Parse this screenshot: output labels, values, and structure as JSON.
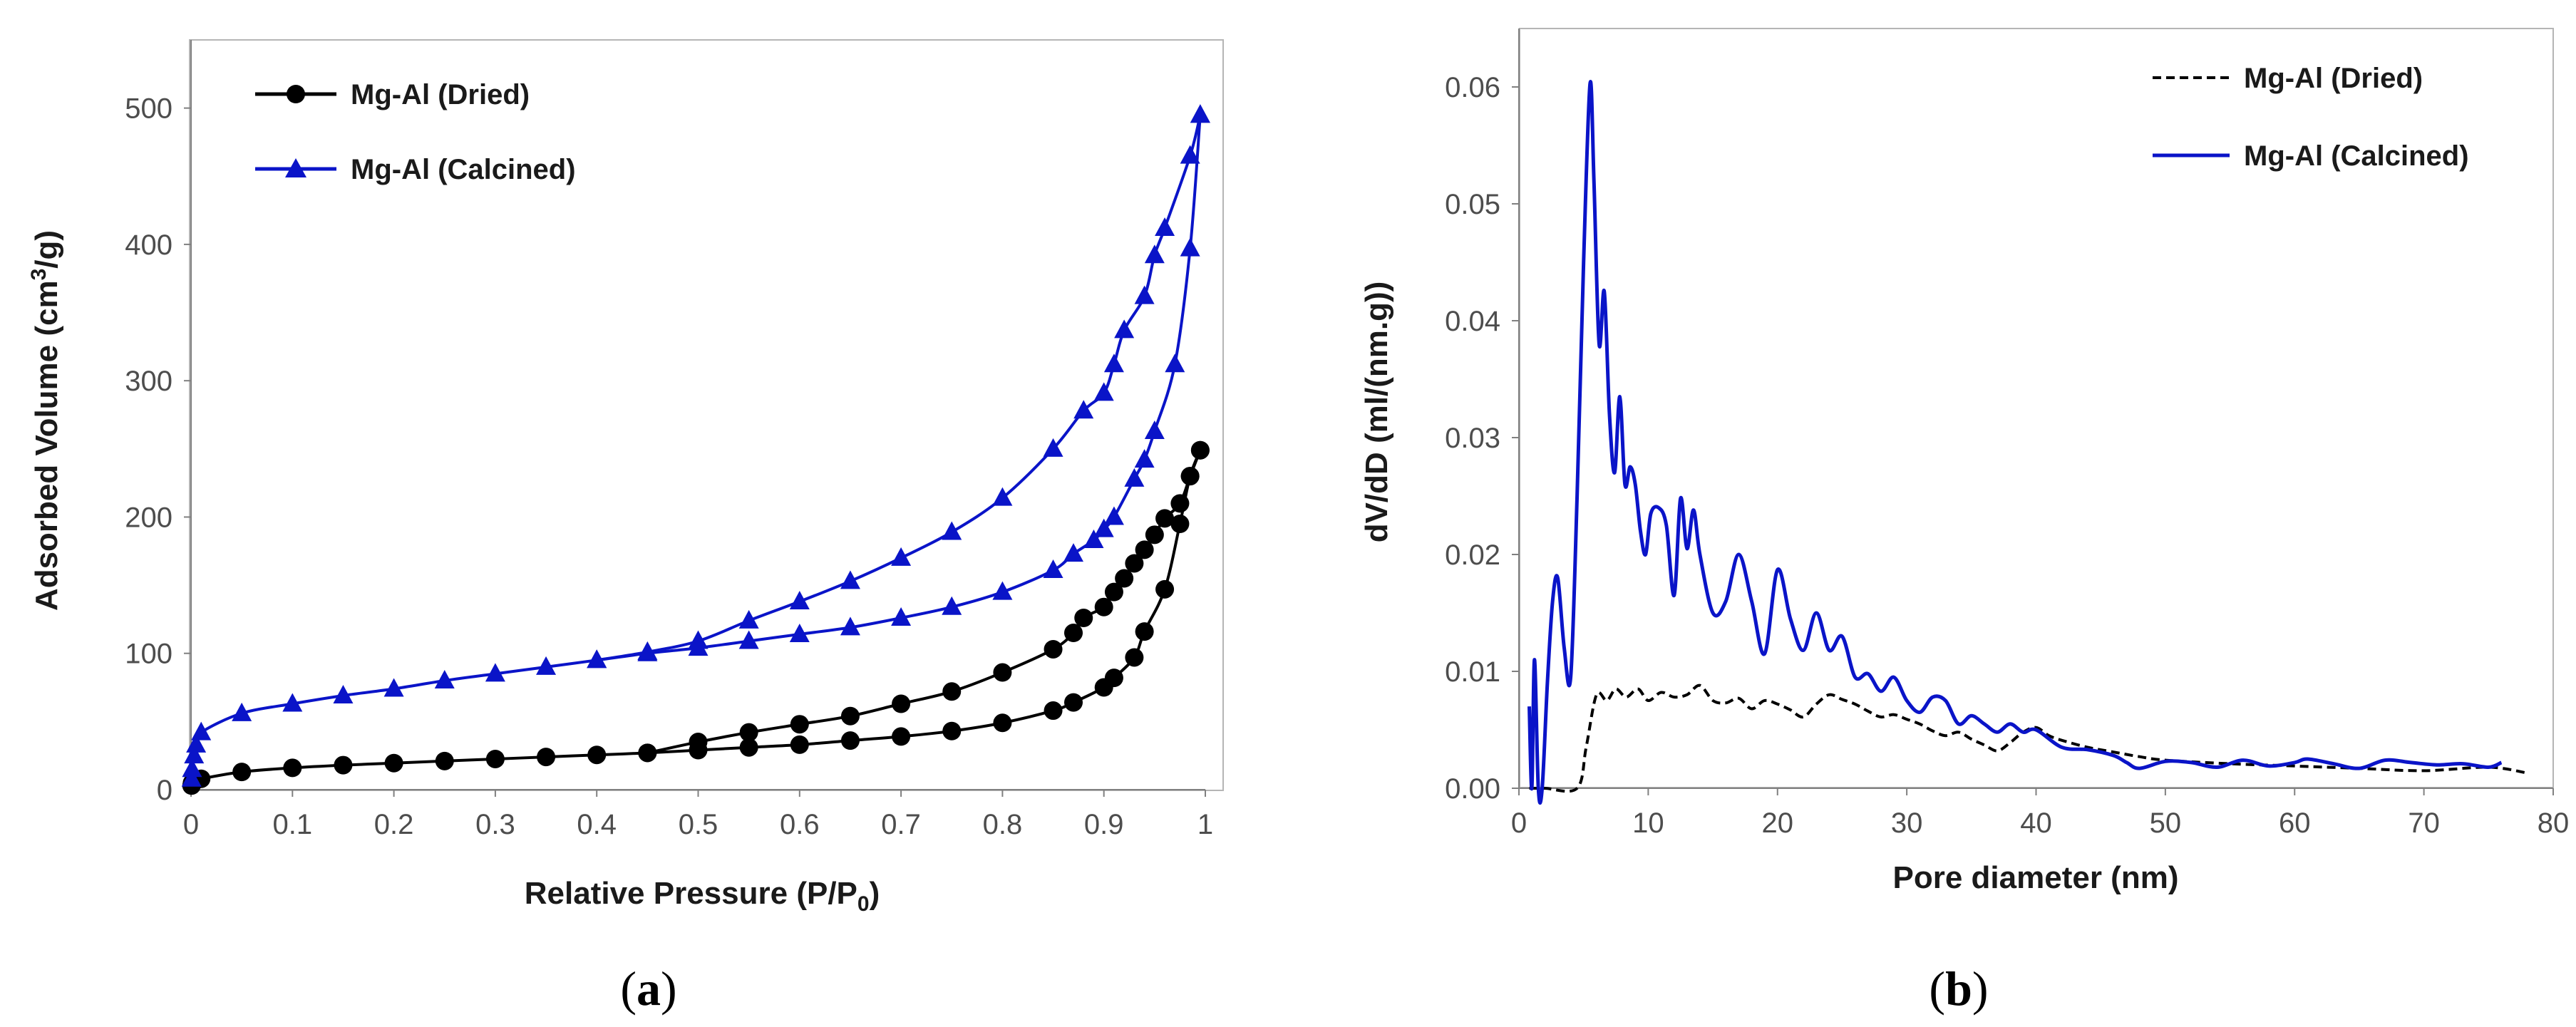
{
  "chart_data": [
    {
      "type": "line",
      "panel": "a",
      "caption": {
        "open": "(",
        "letter": "a",
        "close": ")"
      },
      "xlabel": "Relative Pressure (P/P",
      "xlabel_sub": "0",
      "xlabel_tail": ")",
      "ylabel": "Adsorbed Volume (cm",
      "ylabel_sup": "3",
      "ylabel_tail": "/g)",
      "xlim": [
        0,
        1
      ],
      "ylim": [
        0,
        550
      ],
      "xticks": [
        0,
        0.1,
        0.2,
        0.3,
        0.4,
        0.5,
        0.6,
        0.7,
        0.8,
        0.9,
        1
      ],
      "xtick_labels": [
        "0",
        "0.1",
        "0.2",
        "0.3",
        "0.4",
        "0.5",
        "0.6",
        "0.7",
        "0.8",
        "0.9",
        "1"
      ],
      "yticks": [
        0,
        100,
        200,
        300,
        400,
        500
      ],
      "ytick_labels": [
        "0",
        "100",
        "200",
        "300",
        "400",
        "500"
      ],
      "legend_position": "top-left",
      "series": [
        {
          "name": "Mg-Al (Dried)",
          "color": "#000000",
          "marker": "circle",
          "style": "solid",
          "adsorption": {
            "x": [
              0.0005,
              0.001,
              0.003,
              0.005,
              0.01,
              0.05,
              0.1,
              0.15,
              0.2,
              0.25,
              0.3,
              0.35,
              0.4,
              0.45,
              0.5,
              0.55,
              0.6,
              0.65,
              0.7,
              0.75,
              0.8,
              0.85,
              0.87,
              0.9,
              0.91,
              0.93,
              0.94,
              0.96,
              0.975,
              0.985,
              0.995
            ],
            "y": [
              3,
              5,
              6,
              7,
              8,
              13,
              16,
              18,
              19.5,
              21,
              22.5,
              24,
              25.5,
              27,
              29,
              31,
              33,
              36,
              39,
              43,
              49,
              58,
              64,
              75,
              82,
              97,
              116,
              147,
              195,
              230,
              249
            ]
          },
          "desorption": {
            "x": [
              0.995,
              0.985,
              0.975,
              0.96,
              0.95,
              0.94,
              0.93,
              0.92,
              0.91,
              0.9,
              0.88,
              0.87,
              0.85,
              0.8,
              0.75,
              0.7,
              0.65,
              0.6,
              0.55,
              0.5,
              0.45
            ],
            "y": [
              249,
              230,
              210,
              199,
              187,
              176,
              166,
              155,
              145,
              134,
              126,
              115,
              103,
              86,
              72,
              63,
              54,
              48,
              42,
              35,
              27
            ]
          }
        },
        {
          "name": "Mg-Al (Calcined)",
          "color": "#0a14c8",
          "marker": "triangle",
          "style": "solid",
          "adsorption": {
            "x": [
              0.0005,
              0.001,
              0.003,
              0.005,
              0.01,
              0.05,
              0.1,
              0.15,
              0.2,
              0.25,
              0.3,
              0.35,
              0.4,
              0.45,
              0.5,
              0.55,
              0.6,
              0.65,
              0.7,
              0.75,
              0.8,
              0.85,
              0.87,
              0.89,
              0.9,
              0.91,
              0.93,
              0.94,
              0.95,
              0.97,
              0.985,
              0.995
            ],
            "y": [
              8,
              15,
              25,
              33,
              42,
              56,
              63,
              69,
              74,
              80,
              85,
              90,
              95,
              100,
              104,
              109,
              114,
              119,
              126,
              134,
              145,
              161,
              173,
              183,
              191,
              200,
              228,
              242,
              263,
              312,
              397,
              495
            ]
          },
          "desorption": {
            "x": [
              0.995,
              0.985,
              0.96,
              0.95,
              0.94,
              0.92,
              0.91,
              0.9,
              0.88,
              0.85,
              0.8,
              0.75,
              0.7,
              0.65,
              0.6,
              0.55,
              0.5,
              0.45,
              0.4
            ],
            "y": [
              495,
              465,
              412,
              392,
              362,
              337,
              312,
              291,
              278,
              250,
              214,
              189,
              170,
              153,
              138,
              124,
              109,
              101,
              95
            ]
          }
        }
      ]
    },
    {
      "type": "line",
      "panel": "b",
      "caption": {
        "open": "(",
        "letter": "b",
        "close": ")"
      },
      "xlabel": "Pore diameter (nm)",
      "ylabel": "dV/dD (ml/(nm.g))",
      "xlim": [
        0,
        80
      ],
      "ylim": [
        0,
        0.065
      ],
      "xticks": [
        0,
        10,
        20,
        30,
        40,
        50,
        60,
        70,
        80
      ],
      "xtick_labels": [
        "0",
        "10",
        "20",
        "30",
        "40",
        "50",
        "60",
        "70",
        "80"
      ],
      "yticks": [
        0,
        0.01,
        0.02,
        0.03,
        0.04,
        0.05,
        0.06
      ],
      "ytick_labels": [
        "0.00",
        "0.01",
        "0.02",
        "0.03",
        "0.04",
        "0.05",
        "0.06"
      ],
      "legend_position": "top-right",
      "series": [
        {
          "name": "Mg-Al (Dried)",
          "color": "#000000",
          "style": "dashed",
          "x": [
            0.8,
            2,
            4.5,
            5.2,
            6,
            6.8,
            7.5,
            8.3,
            9.2,
            10,
            11,
            12,
            13,
            14,
            15,
            16,
            17,
            18,
            19,
            20,
            21,
            22,
            23,
            24,
            25,
            26,
            27,
            28,
            29,
            30,
            31,
            32,
            33,
            34,
            35,
            36,
            37,
            38,
            39,
            40,
            41,
            42,
            44,
            46,
            48,
            50,
            55,
            60,
            65,
            70,
            75,
            78
          ],
          "y": [
            0,
            0,
            0,
            0.0035,
            0.008,
            0.0075,
            0.0085,
            0.0078,
            0.0085,
            0.0075,
            0.0082,
            0.0078,
            0.008,
            0.0088,
            0.0075,
            0.0073,
            0.0077,
            0.0068,
            0.0075,
            0.0072,
            0.0067,
            0.0061,
            0.0072,
            0.008,
            0.0076,
            0.0072,
            0.0066,
            0.0061,
            0.0063,
            0.0059,
            0.0055,
            0.0049,
            0.0045,
            0.0048,
            0.0042,
            0.0037,
            0.0032,
            0.0039,
            0.0048,
            0.0052,
            0.0045,
            0.0041,
            0.0035,
            0.0031,
            0.0027,
            0.0024,
            0.0021,
            0.0019,
            0.0017,
            0.0015,
            0.0018,
            0.0013
          ]
        },
        {
          "name": "Mg-Al (Calcined)",
          "color": "#0a14c8",
          "style": "solid",
          "x": [
            0.8,
            1.0,
            1.2,
            1.5,
            1.8,
            2.2,
            2.6,
            3.0,
            3.5,
            4.0,
            4.5,
            5.0,
            5.5,
            5.8,
            6.2,
            6.6,
            7.0,
            7.4,
            7.8,
            8.2,
            8.6,
            9.0,
            9.4,
            9.8,
            10.2,
            10.8,
            11.4,
            12.0,
            12.5,
            13.0,
            13.5,
            14.0,
            15.0,
            16.0,
            17.0,
            18.0,
            19.0,
            20.0,
            21.0,
            22.0,
            23.0,
            24.0,
            25.0,
            26.0,
            27.0,
            28.0,
            29.0,
            30.0,
            31.0,
            32.0,
            33.0,
            34.0,
            35.0,
            36.0,
            37.0,
            38.0,
            39.0,
            40.0,
            42.0,
            44.0,
            46.0,
            47.0,
            48.0,
            50.0,
            52.0,
            54.0,
            56.0,
            58.0,
            60.0,
            61.0,
            63.0,
            65.0,
            67.0,
            69.0,
            71.0,
            73.0,
            75.0,
            76.0
          ],
          "y": [
            0.007,
            0,
            0.011,
            0,
            0,
            0.009,
            0.016,
            0.018,
            0.012,
            0.0095,
            0.025,
            0.045,
            0.0603,
            0.052,
            0.038,
            0.0425,
            0.032,
            0.027,
            0.0335,
            0.026,
            0.0275,
            0.026,
            0.022,
            0.02,
            0.0235,
            0.024,
            0.0225,
            0.0165,
            0.0248,
            0.0205,
            0.0238,
            0.02,
            0.015,
            0.016,
            0.02,
            0.016,
            0.0115,
            0.0187,
            0.0145,
            0.0118,
            0.015,
            0.0118,
            0.013,
            0.0095,
            0.0098,
            0.0083,
            0.0095,
            0.0075,
            0.0065,
            0.0078,
            0.0075,
            0.0055,
            0.0062,
            0.0055,
            0.0048,
            0.0055,
            0.0048,
            0.005,
            0.0035,
            0.0033,
            0.0028,
            0.0022,
            0.0017,
            0.0023,
            0.0022,
            0.0018,
            0.0024,
            0.0019,
            0.0022,
            0.0025,
            0.0021,
            0.0017,
            0.0024,
            0.0022,
            0.002,
            0.0021,
            0.0018,
            0.0022
          ]
        }
      ]
    }
  ]
}
